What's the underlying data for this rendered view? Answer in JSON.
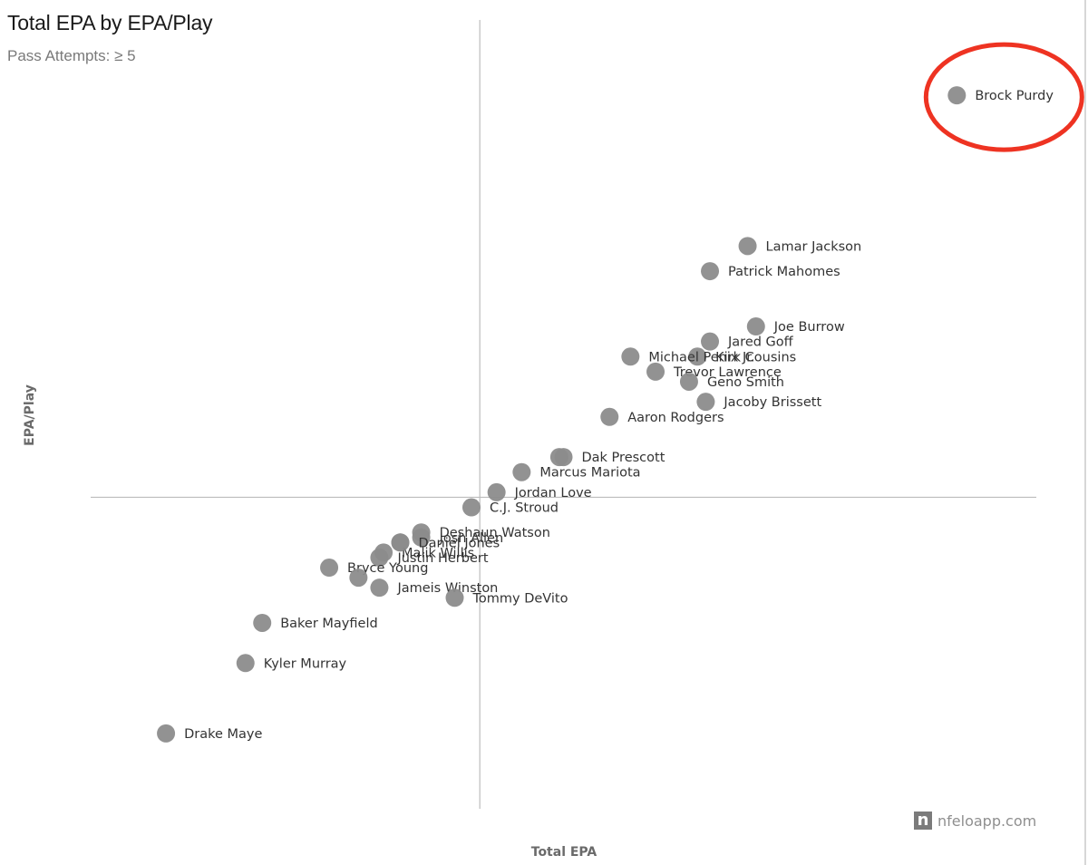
{
  "header": {
    "title": "Total EPA by EPA/Play",
    "subtitle": "Pass Attempts: ≥ 5"
  },
  "watermark": {
    "logo_letter": "n",
    "text": "nfeloapp.com"
  },
  "colors": {
    "point": "#8c8c8c",
    "highlight": "#ee3322",
    "axis": "#bdbdbd"
  },
  "chart_data": {
    "type": "scatter",
    "title": "Total EPA by EPA/Play",
    "subtitle": "Pass Attempts: ≥ 5",
    "xlabel": "Total EPA",
    "ylabel": "EPA/Play",
    "reference_lines": {
      "x": 0,
      "y": 0
    },
    "xlim": [
      -9.3,
      13.3
    ],
    "ylim": [
      -0.62,
      0.95
    ],
    "grid": false,
    "highlighted": "Brock Purdy",
    "points": [
      {
        "name": "Brock Purdy",
        "x": 11.4,
        "y": 0.8
      },
      {
        "name": "Lamar Jackson",
        "x": 6.4,
        "y": 0.5
      },
      {
        "name": "Patrick Mahomes",
        "x": 5.5,
        "y": 0.45
      },
      {
        "name": "Joe Burrow",
        "x": 6.6,
        "y": 0.34
      },
      {
        "name": "Jared Goff",
        "x": 5.5,
        "y": 0.31
      },
      {
        "name": "Kirk Cousins",
        "x": 5.2,
        "y": 0.28
      },
      {
        "name": "Michael Penix Jr.",
        "x": 3.6,
        "y": 0.28
      },
      {
        "name": "Trevor Lawrence",
        "x": 4.2,
        "y": 0.25
      },
      {
        "name": "Geno Smith",
        "x": 5.0,
        "y": 0.23
      },
      {
        "name": "Jacoby Brissett",
        "x": 5.4,
        "y": 0.19
      },
      {
        "name": "Aaron Rodgers",
        "x": 3.1,
        "y": 0.16
      },
      {
        "name": "Dak Prescott",
        "x": 2.0,
        "y": 0.08
      },
      {
        "name": "Marcus Mariota",
        "x": 1.0,
        "y": 0.05
      },
      {
        "name": "Jordan Love",
        "x": 0.4,
        "y": 0.01
      },
      {
        "name": "C.J. Stroud",
        "x": -0.2,
        "y": -0.02
      },
      {
        "name": "Deshaun Watson",
        "x": -1.4,
        "y": -0.07
      },
      {
        "name": "Josh Allen",
        "x": -1.4,
        "y": -0.08
      },
      {
        "name": "Daniel Jones",
        "x": -1.9,
        "y": -0.09
      },
      {
        "name": "Malik Willis",
        "x": -2.3,
        "y": -0.11
      },
      {
        "name": "Justin Herbert",
        "x": -2.4,
        "y": -0.12
      },
      {
        "name": "Bryce Young",
        "x": -3.6,
        "y": -0.14
      },
      {
        "name": "Jameis Winston",
        "x": -2.4,
        "y": -0.18
      },
      {
        "name": "Tommy DeVito",
        "x": -0.6,
        "y": -0.2
      },
      {
        "name": "Baker Mayfield",
        "x": -5.2,
        "y": -0.25
      },
      {
        "name": "Kyler Murray",
        "x": -5.6,
        "y": -0.33
      },
      {
        "name": "Drake Maye",
        "x": -7.5,
        "y": -0.47
      },
      {
        "name": "",
        "x": -2.9,
        "y": -0.16
      },
      {
        "name": "",
        "x": -1.9,
        "y": -0.09
      },
      {
        "name": "",
        "x": 1.9,
        "y": 0.08
      }
    ]
  }
}
